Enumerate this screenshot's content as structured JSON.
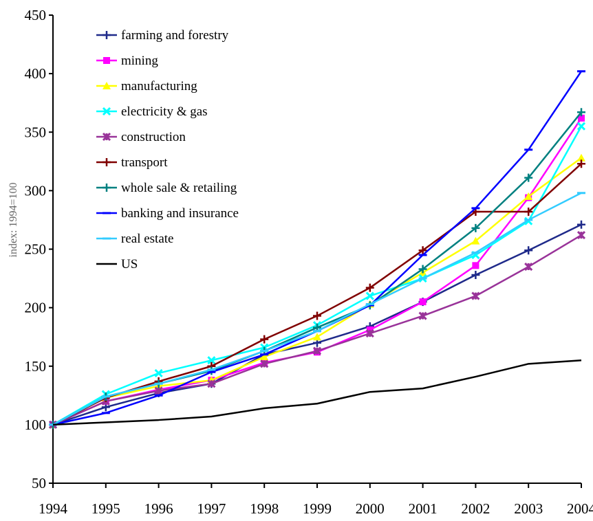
{
  "chart_data": {
    "type": "line",
    "title": "",
    "xlabel": "",
    "ylabel": "index: 1994=100",
    "ylim": [
      50,
      450
    ],
    "yticks": [
      50,
      100,
      150,
      200,
      250,
      300,
      350,
      400,
      450
    ],
    "categories": [
      "1994",
      "1995",
      "1996",
      "1997",
      "1998",
      "1999",
      "2000",
      "2001",
      "2002",
      "2003",
      "2004"
    ],
    "legend_position": "top-left",
    "grid": false,
    "series": [
      {
        "name": "farming and forestry",
        "color": "#1f2a8a",
        "marker": "plus",
        "values": [
          100,
          115,
          127,
          135,
          160,
          170,
          184,
          205,
          228,
          249,
          271
        ]
      },
      {
        "name": "mining",
        "color": "#ff00ff",
        "marker": "square",
        "values": [
          100,
          120,
          130,
          138,
          153,
          162,
          181,
          205,
          236,
          294,
          362
        ]
      },
      {
        "name": "manufacturing",
        "color": "#ffff00",
        "marker": "triangle",
        "values": [
          100,
          123,
          133,
          138,
          158,
          175,
          203,
          230,
          257,
          295,
          328
        ]
      },
      {
        "name": "electricity & gas",
        "color": "#00ffff",
        "marker": "x",
        "values": [
          100,
          126,
          144,
          155,
          166,
          185,
          210,
          225,
          245,
          274,
          355
        ]
      },
      {
        "name": "construction",
        "color": "#993399",
        "marker": "star",
        "values": [
          100,
          120,
          129,
          135,
          152,
          163,
          178,
          193,
          210,
          235,
          262
        ]
      },
      {
        "name": "transport",
        "color": "#800000",
        "marker": "plus",
        "values": [
          100,
          123,
          137,
          150,
          173,
          193,
          217,
          249,
          282,
          282,
          323
        ]
      },
      {
        "name": "whole sale & retailing",
        "color": "#008080",
        "marker": "plus",
        "values": [
          100,
          124,
          135,
          146,
          163,
          183,
          202,
          233,
          268,
          311,
          367
        ]
      },
      {
        "name": "banking and insurance",
        "color": "#0000ff",
        "marker": "dash",
        "values": [
          100,
          110,
          125,
          145,
          160,
          180,
          202,
          245,
          285,
          335,
          402
        ]
      },
      {
        "name": "real estate",
        "color": "#33ccff",
        "marker": "dash",
        "values": [
          100,
          124,
          135,
          147,
          163,
          180,
          203,
          225,
          247,
          275,
          298
        ]
      },
      {
        "name": "US",
        "color": "#000000",
        "marker": "none",
        "values": [
          100,
          102,
          104,
          107,
          114,
          118,
          128,
          131,
          141,
          152,
          155
        ]
      }
    ]
  }
}
